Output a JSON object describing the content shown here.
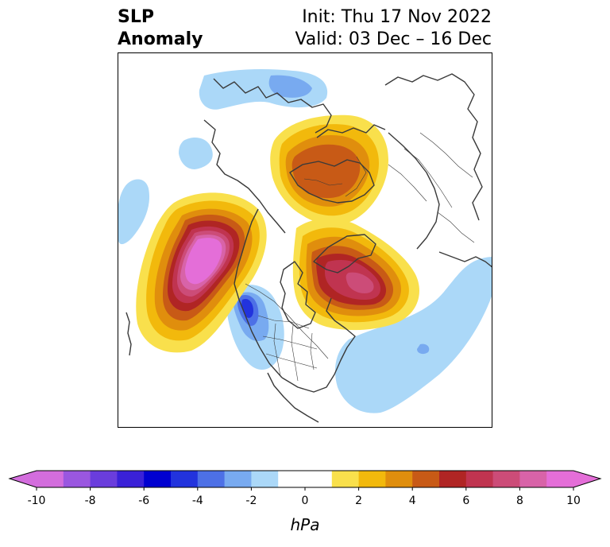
{
  "header": {
    "title_line1": "SLP",
    "title_line2": "Anomaly",
    "init_text": "Init: Thu 17 Nov 2022",
    "valid_text": "Valid: 03 Dec – 16 Dec"
  },
  "colorbar": {
    "unit": "hPa",
    "levels": [
      -10,
      -9,
      -8,
      -7,
      -6,
      -5,
      -4,
      -3,
      -2,
      -1,
      1,
      2,
      3,
      4,
      5,
      6,
      7,
      8,
      9,
      10
    ],
    "tick_values": [
      -10,
      -8,
      -6,
      -4,
      -2,
      0,
      2,
      4,
      6,
      8,
      10
    ],
    "tick_labels": [
      "-10",
      "-8",
      "-6",
      "-4",
      "-2",
      "0",
      "2",
      "4",
      "6",
      "8",
      "10"
    ],
    "colors": [
      "#d36ddd",
      "#9a57e0",
      "#6a3ddc",
      "#3a21d8",
      "#0000d0",
      "#2233dd",
      "#4d70e6",
      "#78aaf0",
      "#abd8f8",
      "#ffffff",
      "#f9e04c",
      "#f2b90c",
      "#e08e0d",
      "#c85a16",
      "#b02524",
      "#c03450",
      "#cc4c78",
      "#d863a8",
      "#e46ed8"
    ],
    "under_color": "#d36ddd",
    "over_color": "#e46ed8"
  },
  "map": {
    "anomaly_colors": {
      "neg_light": "#abd8f8",
      "neg_mid": "#78aaf0",
      "neg_strong": "#4d70e6",
      "neg_deep": "#2233dd",
      "pos_1": "#f9e04c",
      "pos_2": "#f2b90c",
      "pos_3": "#e08e0d",
      "pos_4": "#c85a16",
      "pos_5": "#b02524",
      "pos_6": "#c03450",
      "pos_7": "#cc4c78",
      "pos_8": "#d863a8",
      "pos_9": "#e46ed8"
    },
    "coastline_color": "#3a3a3a"
  }
}
